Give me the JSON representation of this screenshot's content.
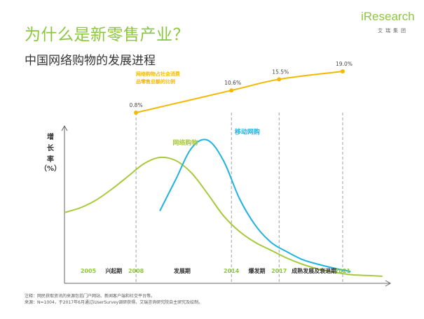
{
  "header": {
    "title": "为什么是新零售产业？",
    "subtitle": "中国网络购物的发展进程"
  },
  "brand": {
    "logo": "iResearch",
    "logo_sub": "艾瑞集团"
  },
  "colors": {
    "penetration": "#f5b800",
    "online_shopping": "#a8c93c",
    "mobile_shopping": "#1fb3e0",
    "year_label": "#8cc63f",
    "title": "#8cc63f"
  },
  "chart_data": {
    "type": "line",
    "title": "中国网络购物的发展进程",
    "ylabel": [
      "增",
      "长",
      "率",
      "（%）"
    ],
    "xlim": [
      2003.5,
      2024
    ],
    "ylim": [
      0,
      100
    ],
    "penetration": {
      "label_lines": [
        "网络购物占社会消费",
        "品零售总额的比例"
      ],
      "points": [
        {
          "year": 2008,
          "value": 0.8,
          "label": "0.8%"
        },
        {
          "year": 2014,
          "value": 10.6,
          "label": "10.6%"
        },
        {
          "year": 2017,
          "value": 15.5,
          "label": "15.5%"
        },
        {
          "year": 2021,
          "value": 19.0,
          "label": "19.0%"
        }
      ]
    },
    "series": [
      {
        "name": "网络购物",
        "x": [
          2003.5,
          2004.5,
          2005.5,
          2006.5,
          2007.5,
          2008.5,
          2009.5,
          2010.5,
          2011.5,
          2012.5,
          2013.5,
          2014.5,
          2015.5,
          2016.5,
          2017.5,
          2018.5,
          2019.5,
          2020.5,
          2021.5,
          2022.5,
          2023.5
        ],
        "y": [
          45,
          48,
          53,
          60,
          68,
          76,
          80,
          78,
          70,
          57,
          43,
          33,
          26,
          21,
          16,
          12,
          9,
          7,
          5.5,
          5,
          4.5
        ]
      },
      {
        "name": "移动网购",
        "x": [
          2009.5,
          2010.5,
          2011.5,
          2012.5,
          2013.5,
          2014.5,
          2015.5,
          2016.5,
          2017.5,
          2018.5,
          2019.5,
          2020.5,
          2021.5
        ],
        "y": [
          46,
          66,
          86,
          91,
          78,
          54,
          37,
          26,
          20,
          15,
          12,
          9.5,
          7.5
        ]
      }
    ],
    "milestones": [
      2008,
      2014,
      2017,
      2021
    ],
    "year_labels": [
      {
        "year": 2005,
        "label": "2005"
      },
      {
        "year": 2008,
        "label": "2008"
      },
      {
        "year": 2014,
        "label": "2014"
      },
      {
        "year": 2017,
        "label": "2017"
      },
      {
        "year": 2021,
        "label": "2021"
      }
    ],
    "phases": [
      {
        "name": "兴起期",
        "center": 2006.6
      },
      {
        "name": "发展期",
        "center": 2010.9
      },
      {
        "name": "爆发期",
        "center": 2015.6
      },
      {
        "name": "成熟发展及衰退期",
        "center": 2019.2
      }
    ]
  },
  "notes": {
    "line1": "注释：网民获取资讯的来源包括门户网站、新闻客户端和社交平台等。",
    "line2": "来源：N=1004，于2017年6月通过iUserSurvey调研获得。艾瑞咨询研究院自主研究及绘制。"
  }
}
